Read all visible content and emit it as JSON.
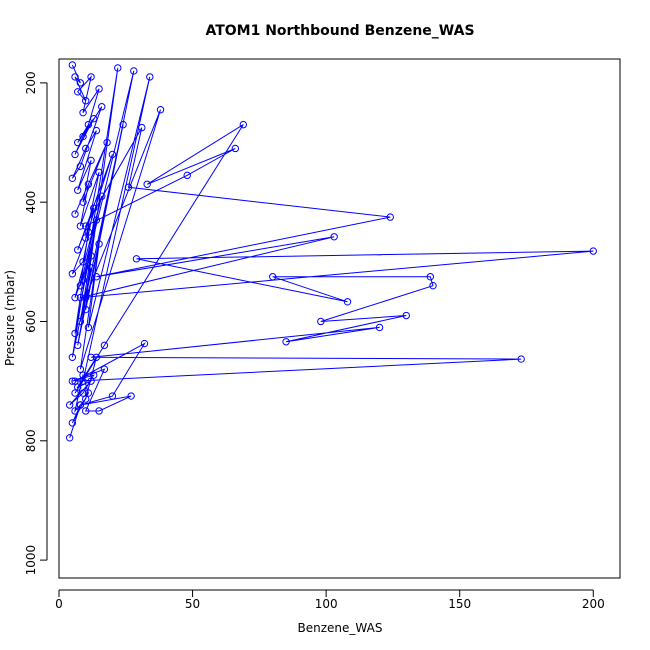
{
  "chart_data": {
    "type": "line",
    "title": "ATOM1 Northbound Benzene_WAS",
    "xlabel": "Benzene_WAS",
    "ylabel": "Pressure (mbar)",
    "xlim": [
      0,
      210
    ],
    "ylim": [
      1030,
      160
    ],
    "x_ticks": [
      0,
      50,
      100,
      150,
      200
    ],
    "y_ticks": [
      200,
      400,
      600,
      800,
      1000
    ],
    "y_axis_reversed": true,
    "grid": false,
    "legend": "none",
    "marker": "open-circle",
    "color": "#0000ff",
    "series": [
      {
        "x": [
          5,
          8,
          6,
          10,
          7,
          12,
          9,
          15,
          11,
          7,
          13,
          6,
          9,
          16,
          8,
          5,
          10,
          14,
          7,
          12,
          9,
          18,
          6,
          11,
          8,
          15,
          10,
          20,
          7,
          13,
          9,
          5,
          11,
          8,
          16,
          6,
          12,
          10,
          24,
          8,
          14,
          6,
          9,
          28,
          7,
          12,
          5,
          22,
          10,
          38,
          8,
          15,
          11,
          34,
          9,
          6,
          17,
          69,
          33,
          66,
          48,
          10,
          31,
          26,
          124,
          14,
          103,
          8,
          200,
          29,
          108,
          80,
          139,
          140,
          98,
          130,
          85,
          120,
          12,
          173,
          6,
          32,
          20,
          8,
          27,
          15,
          10,
          17,
          5,
          13,
          9,
          4,
          12,
          7,
          14,
          10,
          6,
          9,
          11,
          5,
          8,
          4
        ],
        "y": [
          170,
          200,
          190,
          230,
          215,
          190,
          250,
          210,
          270,
          300,
          260,
          320,
          290,
          240,
          340,
          360,
          310,
          280,
          380,
          330,
          400,
          300,
          420,
          370,
          440,
          350,
          460,
          320,
          480,
          410,
          500,
          520,
          450,
          540,
          390,
          560,
          490,
          580,
          270,
          600,
          430,
          620,
          530,
          180,
          640,
          510,
          660,
          175,
          560,
          245,
          680,
          470,
          610,
          190,
          700,
          720,
          640,
          270,
          370,
          310,
          355,
          440,
          275,
          375,
          425,
          525,
          458,
          560,
          482,
          495,
          567,
          525,
          525,
          540,
          600,
          590,
          634,
          610,
          660,
          663,
          700,
          637,
          725,
          740,
          725,
          750,
          750,
          680,
          700,
          690,
          720,
          740,
          700,
          710,
          660,
          730,
          750,
          690,
          720,
          770,
          740,
          795
        ]
      }
    ]
  }
}
